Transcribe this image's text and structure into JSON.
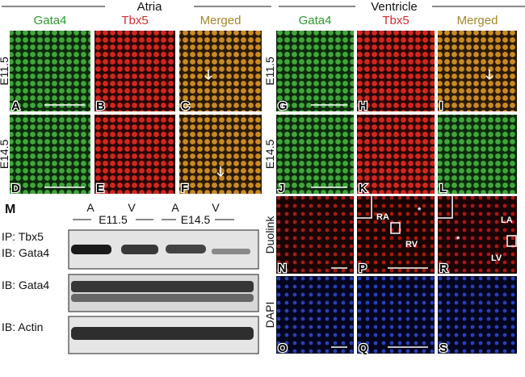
{
  "headers": {
    "atria": "Atria",
    "ventricle": "Ventricle"
  },
  "column_labels": {
    "atria": [
      "Gata4",
      "Tbx5",
      "Merged"
    ],
    "ventricle": [
      "Gata4",
      "Tbx5",
      "Merged"
    ]
  },
  "row_labels": {
    "atria": [
      "E11.5",
      "E14.5"
    ],
    "ventricle": [
      "E11.5",
      "E14.5",
      "Duolink",
      "DAPI"
    ]
  },
  "panel_letters": {
    "atria": [
      [
        "A",
        "B",
        "C"
      ],
      [
        "D",
        "E",
        "F"
      ]
    ],
    "ventricle": [
      [
        "G",
        "H",
        "I"
      ],
      [
        "J",
        "K",
        "L"
      ],
      [
        "N",
        "P",
        "R"
      ],
      [
        "O",
        "Q",
        "S"
      ]
    ]
  },
  "annotations": {
    "ra": "RA",
    "rv": "RV",
    "la": "LA",
    "lv": "LV",
    "star": "*"
  },
  "blot": {
    "letter": "M",
    "lanes": [
      "A",
      "V",
      "A",
      "V"
    ],
    "stages": [
      "E11.5",
      "E14.5"
    ],
    "labels": [
      "IP: Tbx5",
      "IB: Gata4",
      "IB: Gata4",
      "IB: Actin"
    ]
  }
}
